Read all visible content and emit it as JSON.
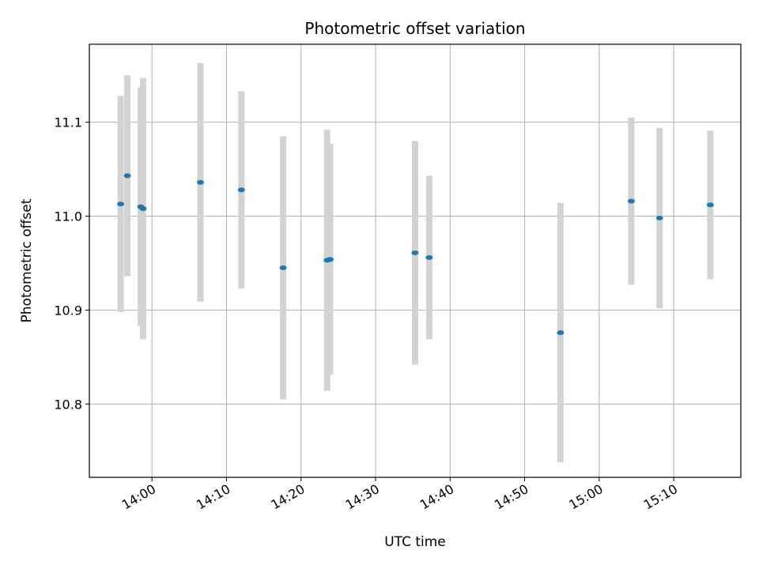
{
  "chart_data": {
    "type": "scatter",
    "title": "Photometric offset variation",
    "xlabel": "UTC time",
    "ylabel": "Photometric offset",
    "x_tick_labels": [
      "14:00",
      "14:10",
      "14:20",
      "14:30",
      "14:40",
      "14:50",
      "15:00",
      "15:10"
    ],
    "y_tick_labels": [
      "10.8",
      "10.9",
      "11.0",
      "11.1"
    ],
    "y_ticks": [
      10.8,
      10.9,
      11.0,
      11.1
    ],
    "xlim": [
      "13:51.6",
      "15:19.0"
    ],
    "ylim": [
      10.722,
      11.183
    ],
    "grid": true,
    "point_color": "#1f77b4",
    "errorbar_color": "#d3d3d3",
    "points": [
      {
        "x": "13:55.8",
        "y": 11.013,
        "yerr": 0.115
      },
      {
        "x": "13:56.7",
        "y": 11.043,
        "yerr": 0.107
      },
      {
        "x": "13:58.5",
        "y": 11.01,
        "yerr": 0.127
      },
      {
        "x": "13:58.8",
        "y": 11.008,
        "yerr": 0.139
      },
      {
        "x": "14:06.5",
        "y": 11.036,
        "yerr": 0.127
      },
      {
        "x": "14:12.0",
        "y": 11.028,
        "yerr": 0.105
      },
      {
        "x": "14:17.6",
        "y": 10.945,
        "yerr": 0.14
      },
      {
        "x": "14:23.5",
        "y": 10.953,
        "yerr": 0.139
      },
      {
        "x": "14:23.9",
        "y": 10.954,
        "yerr": 0.123
      },
      {
        "x": "14:35.3",
        "y": 10.961,
        "yerr": 0.119
      },
      {
        "x": "14:37.2",
        "y": 10.956,
        "yerr": 0.087
      },
      {
        "x": "14:54.8",
        "y": 10.876,
        "yerr": 0.138
      },
      {
        "x": "15:04.3",
        "y": 11.016,
        "yerr": 0.089
      },
      {
        "x": "15:08.1",
        "y": 10.998,
        "yerr": 0.096
      },
      {
        "x": "15:14.9",
        "y": 11.012,
        "yerr": 0.079
      }
    ]
  }
}
